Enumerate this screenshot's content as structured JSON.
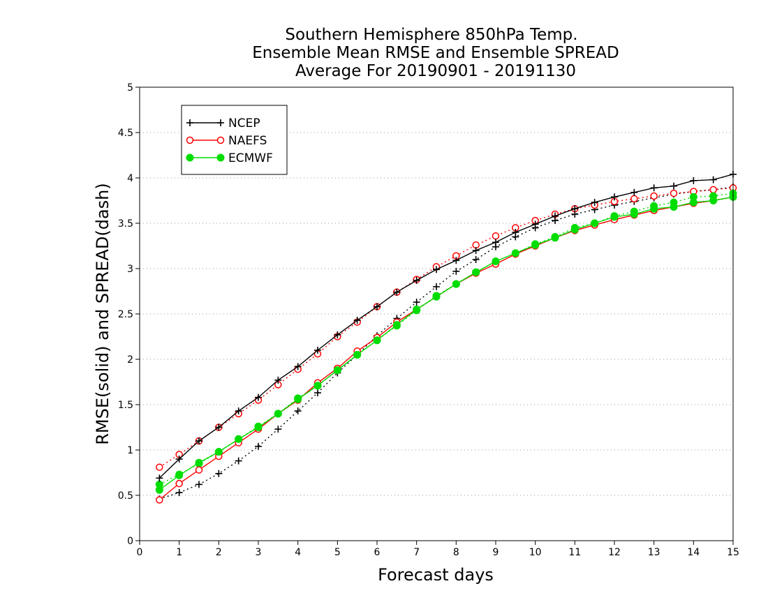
{
  "chart_data": {
    "type": "line",
    "title": [
      "Southern Hemisphere 850hPa Temp.",
      "Ensemble Mean RMSE and Ensemble SPREAD",
      "Average For 20190901 - 20191130"
    ],
    "xlabel": "Forecast days",
    "ylabel": "RMSE(solid) and SPREAD(dash)",
    "xlim": [
      0,
      15
    ],
    "ylim": [
      0,
      5
    ],
    "xticks": [
      "0",
      "1",
      "2",
      "3",
      "4",
      "5",
      "6",
      "7",
      "8",
      "9",
      "10",
      "11",
      "12",
      "13",
      "14",
      "15"
    ],
    "yticks": [
      "0",
      "0.5",
      "1",
      "1.5",
      "2",
      "2.5",
      "3",
      "3.5",
      "4",
      "4.5",
      "5"
    ],
    "grid": "horizontal dotted",
    "legend_position": "top-left",
    "legend": [
      "NCEP",
      "NAEFS",
      "ECMWF"
    ],
    "x": [
      0.5,
      1,
      1.5,
      2,
      2.5,
      3,
      3.5,
      4,
      4.5,
      5,
      5.5,
      6,
      6.5,
      7,
      7.5,
      8,
      8.5,
      9,
      9.5,
      10,
      10.5,
      11,
      11.5,
      12,
      12.5,
      13,
      13.5,
      14,
      14.5,
      15
    ],
    "series": [
      {
        "name": "NCEP",
        "metric": "RMSE",
        "style": "solid",
        "marker": "plus",
        "color": "#000000",
        "values": [
          0.69,
          0.9,
          1.1,
          1.25,
          1.43,
          1.58,
          1.77,
          1.92,
          2.1,
          2.27,
          2.43,
          2.58,
          2.74,
          2.87,
          2.99,
          3.09,
          3.2,
          3.29,
          3.4,
          3.49,
          3.58,
          3.66,
          3.73,
          3.79,
          3.84,
          3.89,
          3.91,
          3.97,
          3.98,
          4.04
        ]
      },
      {
        "name": "NCEP",
        "metric": "SPREAD",
        "style": "dash",
        "marker": "plus",
        "color": "#000000",
        "values": [
          0.46,
          0.53,
          0.62,
          0.74,
          0.88,
          1.04,
          1.23,
          1.43,
          1.63,
          1.85,
          2.05,
          2.26,
          2.45,
          2.63,
          2.8,
          2.97,
          3.1,
          3.24,
          3.35,
          3.45,
          3.53,
          3.6,
          3.65,
          3.7,
          3.74,
          3.78,
          3.82,
          3.85,
          3.87,
          3.9
        ]
      },
      {
        "name": "NAEFS",
        "metric": "RMSE",
        "style": "solid",
        "marker": "circle",
        "color": "#ff0000",
        "values": [
          0.45,
          0.63,
          0.78,
          0.93,
          1.08,
          1.23,
          1.4,
          1.55,
          1.74,
          1.9,
          2.09,
          2.24,
          2.41,
          2.55,
          2.69,
          2.83,
          2.95,
          3.05,
          3.16,
          3.25,
          3.34,
          3.42,
          3.48,
          3.54,
          3.59,
          3.64,
          3.68,
          3.72,
          3.75,
          3.79
        ]
      },
      {
        "name": "NAEFS",
        "metric": "SPREAD",
        "style": "dash",
        "marker": "circle",
        "color": "#ff0000",
        "values": [
          0.81,
          0.95,
          1.1,
          1.25,
          1.4,
          1.55,
          1.72,
          1.89,
          2.06,
          2.25,
          2.41,
          2.58,
          2.74,
          2.88,
          3.02,
          3.14,
          3.26,
          3.36,
          3.45,
          3.53,
          3.6,
          3.66,
          3.7,
          3.74,
          3.77,
          3.8,
          3.83,
          3.85,
          3.87,
          3.89
        ]
      },
      {
        "name": "ECMWF",
        "metric": "RMSE",
        "style": "solid",
        "marker": "filled-circle",
        "color": "#00dd00",
        "values": [
          0.56,
          0.72,
          0.86,
          0.98,
          1.12,
          1.25,
          1.4,
          1.56,
          1.71,
          1.88,
          2.05,
          2.21,
          2.38,
          2.55,
          2.69,
          2.83,
          2.96,
          3.08,
          3.17,
          3.26,
          3.34,
          3.43,
          3.5,
          3.57,
          3.6,
          3.66,
          3.68,
          3.73,
          3.75,
          3.79
        ]
      },
      {
        "name": "ECMWF",
        "metric": "SPREAD",
        "style": "dash",
        "marker": "filled-circle",
        "color": "#00dd00",
        "values": [
          0.62,
          0.73,
          0.85,
          0.98,
          1.12,
          1.26,
          1.4,
          1.57,
          1.71,
          1.88,
          2.05,
          2.21,
          2.37,
          2.54,
          2.7,
          2.83,
          2.96,
          3.08,
          3.17,
          3.27,
          3.35,
          3.45,
          3.5,
          3.58,
          3.63,
          3.69,
          3.73,
          3.79,
          3.8,
          3.83
        ]
      }
    ]
  }
}
